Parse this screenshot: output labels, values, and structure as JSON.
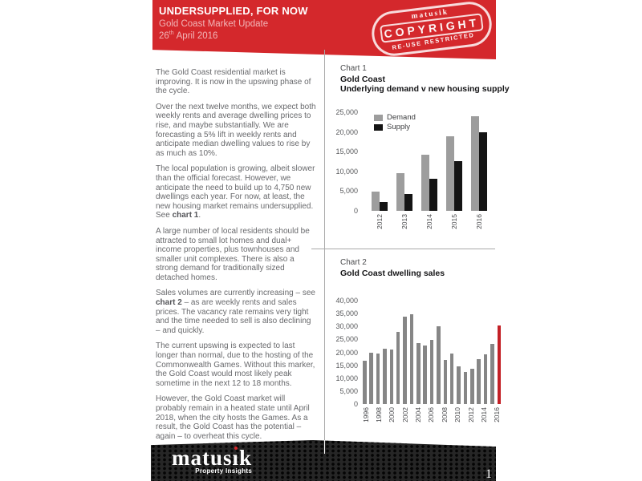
{
  "header": {
    "title": "UNDERSUPPLIED, FOR NOW",
    "subtitle": "Gold Coast Market Update",
    "date": {
      "day": "26",
      "ordinal": "th",
      "rest": "April 2016"
    },
    "stamp": {
      "brand": "matusik",
      "word": "COPYRIGHT",
      "restriction": "RE-USE RESTRICTED"
    }
  },
  "article": {
    "paragraphs": [
      [
        {
          "t": "The Gold Coast residential market is improving.  It is now in the upswing phase of the cycle.",
          "b": false
        }
      ],
      [
        {
          "t": "Over the next twelve months, we expect both weekly rents and average dwelling prices to rise, and maybe substantially.  We are forecasting a 5% lift in weekly rents and anticipate median dwelling values to rise by as much as 10%.",
          "b": false
        }
      ],
      [
        {
          "t": "The local population is growing, albeit slower than the official forecast.  However, we anticipate the need to build up to 4,750 new dwellings each year.  For now, at least, the new housing market remains undersupplied.  See ",
          "b": false
        },
        {
          "t": "chart 1",
          "b": true
        },
        {
          "t": ".",
          "b": false
        }
      ],
      [
        {
          "t": "A large number of local residents should be attracted to small lot homes and dual+ income properties, plus townhouses and smaller unit complexes.  There is also a strong demand for traditionally sized detached homes.",
          "b": false
        }
      ],
      [
        {
          "t": "Sales volumes are currently increasing – see ",
          "b": false
        },
        {
          "t": "chart 2",
          "b": true
        },
        {
          "t": " – as are weekly rents and sales prices. The vacancy rate remains very tight and the time needed to sell is also declining – and quickly.",
          "b": false
        }
      ],
      [
        {
          "t": "The current upswing is expected to last longer than normal, due to the hosting of the Commonwealth Games.  Without this marker, the Gold Coast would most likely peak sometime in the next 12 to 18 months.",
          "b": false
        }
      ],
      [
        {
          "t": "However,  the Gold Coast market will probably remain in a heated state until April 2018, when the city hosts the Games.  As a result, the Gold Coast has the potential – again – to overheat this cycle.",
          "b": false
        }
      ]
    ]
  },
  "chart_data": [
    {
      "type": "bar",
      "label": "Chart 1",
      "title": "Gold Coast",
      "subtitle": "Underlying demand v new housing supply",
      "categories": [
        "2012",
        "2013",
        "2014",
        "2015",
        "2016"
      ],
      "series": [
        {
          "name": "Demand",
          "color": "#9d9d9d",
          "values": [
            4800,
            9600,
            14300,
            19000,
            23900
          ]
        },
        {
          "name": "Supply",
          "color": "#141414",
          "values": [
            2200,
            4300,
            8200,
            12500,
            20000
          ]
        }
      ],
      "ylim": [
        0,
        25000
      ],
      "ytick_step": 5000,
      "grid": false,
      "legend_position": "top-left"
    },
    {
      "type": "bar",
      "label": "Chart 2",
      "title": "Gold Coast dwelling sales",
      "categories": [
        "1996",
        "1997",
        "1998",
        "1999",
        "2000",
        "2001",
        "2002",
        "2003",
        "2004",
        "2005",
        "2006",
        "2007",
        "2008",
        "2009",
        "2010",
        "2011",
        "2012",
        "2013",
        "2014",
        "2015",
        "2016"
      ],
      "values": [
        16800,
        19700,
        19500,
        21400,
        21100,
        28000,
        33800,
        34700,
        23600,
        22500,
        24900,
        30000,
        17100,
        19600,
        14500,
        12400,
        13600,
        17400,
        19200,
        23400,
        30400
      ],
      "bar_color": "#868686",
      "highlight_index": 20,
      "highlight_color": "#c32026",
      "ylim": [
        0,
        40000
      ],
      "ytick_step": 5000,
      "xtick_every": 2,
      "grid": false
    }
  ],
  "footer": {
    "logo": "matusik",
    "tagline": "Property Insights",
    "page_number": "1"
  }
}
